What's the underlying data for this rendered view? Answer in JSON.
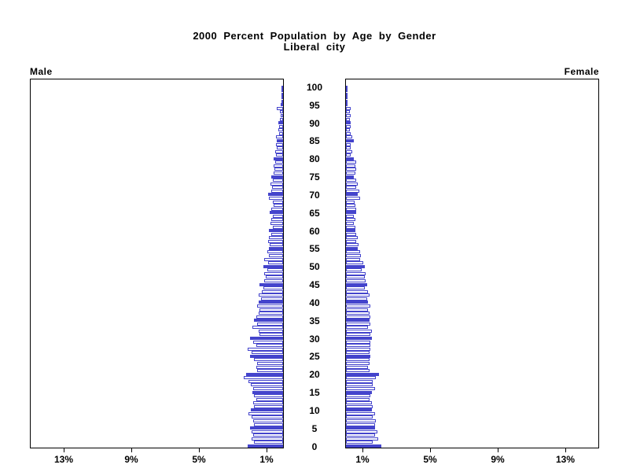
{
  "header": {
    "title_line1": "2000 Percent Population by Age by Gender",
    "title_line2": "Liberal city"
  },
  "panels": {
    "left_label": "Male",
    "right_label": "Female"
  },
  "chart_data": {
    "type": "bar",
    "variant": "population-pyramid",
    "title": "2000 Percent Population by Age by Gender",
    "subtitle": "Liberal city",
    "left_series_label": "Male",
    "right_series_label": "Female",
    "age_min": 0,
    "age_max": 100,
    "age_axis_labels": [
      0,
      5,
      10,
      15,
      20,
      25,
      30,
      35,
      40,
      45,
      50,
      55,
      60,
      65,
      70,
      75,
      80,
      85,
      90,
      95,
      100
    ],
    "x_ticks_percent": [
      1,
      5,
      9,
      13
    ],
    "x_tick_labels": [
      "1%",
      "5%",
      "9%",
      "13%"
    ],
    "xlim_percent": [
      0,
      15
    ],
    "highlight_rule": "bars at ages divisible by 5 are solid filled, others outlined white",
    "legend": "none",
    "grid": false,
    "colors": {
      "bar_outline": "#4444cc",
      "bar_fill_solid": "#4444cc",
      "bar_fill_plain": "#ffffff",
      "axis": "#000000",
      "background": "#ffffff"
    },
    "series": [
      {
        "name": "Male",
        "side": "left",
        "values_percent": [
          2.1,
          1.7,
          1.85,
          1.75,
          1.85,
          1.95,
          1.7,
          1.75,
          1.85,
          2.05,
          1.9,
          1.7,
          1.75,
          1.6,
          1.7,
          1.8,
          1.75,
          1.9,
          2.05,
          2.3,
          2.2,
          1.55,
          1.6,
          1.55,
          1.7,
          1.95,
          1.85,
          2.1,
          1.6,
          1.75,
          1.95,
          1.4,
          1.45,
          1.8,
          1.55,
          1.7,
          1.6,
          1.45,
          1.4,
          1.55,
          1.45,
          1.3,
          1.45,
          1.25,
          1.15,
          1.4,
          1.1,
          1.0,
          1.1,
          0.95,
          1.15,
          0.9,
          1.1,
          0.85,
          0.95,
          0.85,
          0.8,
          0.9,
          0.85,
          0.7,
          0.85,
          0.6,
          0.75,
          0.7,
          0.6,
          0.8,
          0.7,
          0.55,
          0.6,
          0.85,
          0.9,
          0.7,
          0.65,
          0.75,
          0.6,
          0.7,
          0.55,
          0.5,
          0.55,
          0.45,
          0.55,
          0.4,
          0.45,
          0.35,
          0.4,
          0.35,
          0.4,
          0.25,
          0.3,
          0.25,
          0.3,
          0.2,
          0.15,
          0.2,
          0.35,
          0.15,
          0.1,
          0.05,
          0.05,
          0.03,
          0.03
        ]
      },
      {
        "name": "Female",
        "side": "right",
        "values_percent": [
          2.1,
          1.6,
          1.9,
          1.7,
          1.85,
          1.7,
          1.7,
          1.75,
          1.6,
          1.7,
          1.55,
          1.6,
          1.55,
          1.4,
          1.45,
          1.55,
          1.7,
          1.6,
          1.6,
          1.75,
          1.95,
          1.4,
          1.3,
          1.4,
          1.4,
          1.45,
          1.4,
          1.45,
          1.45,
          1.45,
          1.55,
          1.45,
          1.55,
          1.3,
          1.45,
          1.4,
          1.45,
          1.4,
          1.3,
          1.45,
          1.3,
          1.25,
          1.4,
          1.3,
          1.1,
          1.25,
          1.15,
          1.1,
          1.15,
          0.95,
          1.1,
          1.0,
          0.85,
          0.9,
          0.85,
          0.7,
          0.75,
          0.6,
          0.7,
          0.6,
          0.55,
          0.55,
          0.45,
          0.55,
          0.45,
          0.6,
          0.6,
          0.55,
          0.5,
          0.85,
          0.7,
          0.8,
          0.6,
          0.7,
          0.6,
          0.45,
          0.55,
          0.6,
          0.55,
          0.6,
          0.45,
          0.3,
          0.35,
          0.3,
          0.3,
          0.45,
          0.35,
          0.3,
          0.25,
          0.3,
          0.3,
          0.25,
          0.3,
          0.25,
          0.3,
          0.1,
          0.1,
          0.05,
          0.05,
          0.03,
          0.03
        ]
      }
    ]
  }
}
